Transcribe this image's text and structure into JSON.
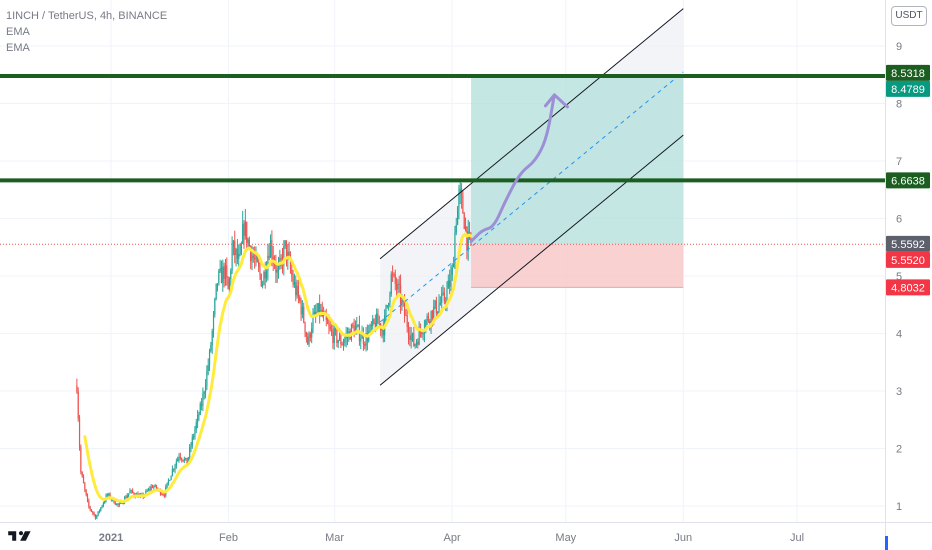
{
  "legend": {
    "symbol_line": "1INCH / TetherUS, 4h, BINANCE",
    "ind1": "EMA",
    "ind2": "EMA"
  },
  "price_axis": {
    "unit_button": "USDT"
  },
  "colors": {
    "bg": "#ffffff",
    "grid": "#f0f3fa",
    "up": "#26a69a",
    "down": "#ef5350",
    "ema": "#ffeb3b",
    "level": "#1b5e20",
    "channel": "#131722",
    "channel_fill": "#eef0f4",
    "profit": "#b2dfdb",
    "loss": "#f8c6c5",
    "arrow": "#9c8fd6",
    "label_green": "#1b5e20",
    "label_teal": "#089981",
    "label_gray": "#5d606b",
    "label_red": "#f23645"
  },
  "chart_data": {
    "type": "candlestick",
    "symbol": "1INCH / TetherUS",
    "timeframe": "4h",
    "exchange": "BINANCE",
    "x_ticks": [
      "2021",
      "Feb",
      "Mar",
      "Apr",
      "May",
      "Jun",
      "Jul"
    ],
    "x_tick_days": [
      0,
      31,
      59,
      90,
      120,
      151,
      181
    ],
    "y_ticks": [
      1,
      2,
      3,
      4,
      5,
      6,
      7,
      8,
      9
    ],
    "ylim": [
      0.7,
      9.75
    ],
    "xlim": [
      -29,
      198
    ],
    "grid": true,
    "price_path": [
      [
        -9,
        3.1
      ],
      [
        -8,
        1.6
      ],
      [
        -6,
        1.0
      ],
      [
        -4,
        0.8
      ],
      [
        -1,
        1.2
      ],
      [
        2,
        1.0
      ],
      [
        5,
        1.25
      ],
      [
        8,
        1.15
      ],
      [
        11,
        1.35
      ],
      [
        14,
        1.2
      ],
      [
        16,
        1.6
      ],
      [
        18,
        1.9
      ],
      [
        20,
        1.75
      ],
      [
        22,
        2.3
      ],
      [
        24,
        2.8
      ],
      [
        26,
        3.6
      ],
      [
        27,
        4.2
      ],
      [
        28,
        4.9
      ],
      [
        30,
        5.1
      ],
      [
        31,
        4.7
      ],
      [
        32,
        5.5
      ],
      [
        34,
        5.2
      ],
      [
        35,
        5.9
      ],
      [
        37,
        5.4
      ],
      [
        40,
        4.9
      ],
      [
        42,
        5.6
      ],
      [
        44,
        5.0
      ],
      [
        46,
        5.5
      ],
      [
        48,
        4.9
      ],
      [
        50,
        4.5
      ],
      [
        51,
        4.2
      ],
      [
        52,
        3.8
      ],
      [
        53,
        4.2
      ],
      [
        55,
        4.4
      ],
      [
        58,
        4.0
      ],
      [
        61,
        3.85
      ],
      [
        64,
        4.1
      ],
      [
        67,
        3.9
      ],
      [
        70,
        4.2
      ],
      [
        72,
        4.1
      ],
      [
        74,
        5.0
      ],
      [
        76,
        4.7
      ],
      [
        78,
        4.2
      ],
      [
        80,
        3.8
      ],
      [
        82,
        4.1
      ],
      [
        85,
        4.4
      ],
      [
        88,
        4.6
      ],
      [
        90,
        5.0
      ],
      [
        91,
        6.0
      ],
      [
        92,
        6.4
      ],
      [
        93,
        6.1
      ],
      [
        94,
        5.6
      ],
      [
        95,
        5.55
      ]
    ],
    "levels": [
      {
        "name": "resistance-upper",
        "value": 8.479
      },
      {
        "name": "resistance-lower",
        "value": 6.6638
      }
    ],
    "long_position": {
      "entry": 5.552,
      "target": 8.479,
      "stop": 4.8032,
      "start_day": 95,
      "end_day": 151
    },
    "channel": {
      "lower_start": [
        71,
        3.1
      ],
      "lower_end": [
        151,
        7.45
      ],
      "width": 2.2,
      "shade_to_day": 151
    },
    "price_labels": [
      {
        "text": "8.5318",
        "value": 8.5318,
        "color": "#1b5e20"
      },
      {
        "text": "8.4789",
        "value": 8.4789,
        "color": "#089981"
      },
      {
        "text": "6.6638",
        "value": 6.6638,
        "color": "#1b5e20"
      },
      {
        "text": "5.5592",
        "value": 5.5592,
        "color": "#5d606b"
      },
      {
        "text": "5.5520",
        "value": 5.552,
        "color": "#f23645"
      },
      {
        "text": "4.8032",
        "value": 4.8032,
        "color": "#f23645"
      }
    ],
    "last_price": 5.552,
    "forecast_arrow": [
      [
        95,
        5.6
      ],
      [
        98,
        5.8
      ],
      [
        101,
        5.85
      ],
      [
        104,
        6.3
      ],
      [
        108,
        6.8
      ],
      [
        112,
        7.0
      ],
      [
        115,
        7.4
      ],
      [
        117,
        8.15
      ]
    ]
  }
}
